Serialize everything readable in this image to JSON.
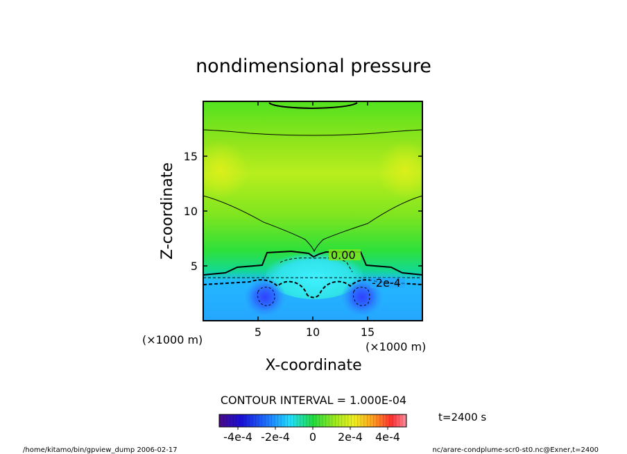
{
  "chart_data": {
    "type": "heatmap",
    "title": "nondimensional pressure",
    "xlabel": "X-coordinate",
    "ylabel": "Z-coordinate",
    "x_unit_note": "(×1000 m)",
    "y_unit_note": "(×1000 m)",
    "xlim": [
      0,
      20
    ],
    "ylim": [
      0,
      20
    ],
    "xticks": [
      5,
      10,
      15
    ],
    "yticks": [
      5,
      10,
      15
    ],
    "contour_interval_text": "CONTOUR INTERVAL = 1.000E-04",
    "contour_labels": [
      "0.00",
      "-2e-4"
    ],
    "colorbar": {
      "range": [
        -0.0005,
        0.0005
      ],
      "tick_labels": [
        "-4e-4",
        "-2e-4",
        "0",
        "2e-4",
        "4e-4"
      ],
      "tick_values": [
        -0.0004,
        -0.0002,
        0,
        0.0002,
        0.0004
      ]
    },
    "approx_field": {
      "upper_region_value": 0.00012,
      "side_maxima_value": 0.0002,
      "central_dome_value": -0.0001,
      "lower_layer_value": -0.00025,
      "vortex_minima": [
        {
          "x": 5.7,
          "z": 2.0,
          "value": -0.0004
        },
        {
          "x": 14.3,
          "z": 2.0,
          "value": -0.0004
        }
      ]
    }
  },
  "time_label": "t=2400 s",
  "footer_left": "/home/kitamo/bin/gpview_dump  2006-02-17",
  "footer_right": "nc/arare-condplume-scr0-st0.nc@Exner,t=2400"
}
